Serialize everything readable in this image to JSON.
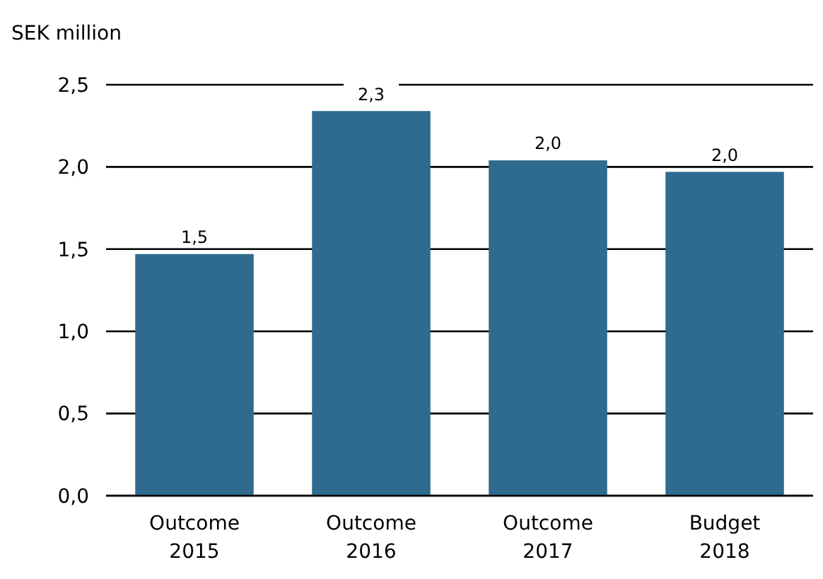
{
  "chart_data": {
    "type": "bar",
    "ylabel": "SEK million",
    "categories": [
      "Outcome 2015",
      "Outcome 2016",
      "Outcome 2017",
      "Budget 2018"
    ],
    "values": [
      1.47,
      2.34,
      2.04,
      1.97
    ],
    "value_labels": [
      "1,5",
      "2,3",
      "2,0",
      "2,0"
    ],
    "color": "#2e6b8e",
    "ylim": [
      0,
      2.5
    ],
    "yticks": [
      {
        "value": 0,
        "label": "0,0"
      },
      {
        "value": 0.5,
        "label": "0,5"
      },
      {
        "value": 1,
        "label": "1,0"
      },
      {
        "value": 1.5,
        "label": "1,5"
      },
      {
        "value": 2,
        "label": "2,0"
      },
      {
        "value": 2.5,
        "label": "2,5"
      }
    ],
    "grid": "y"
  }
}
